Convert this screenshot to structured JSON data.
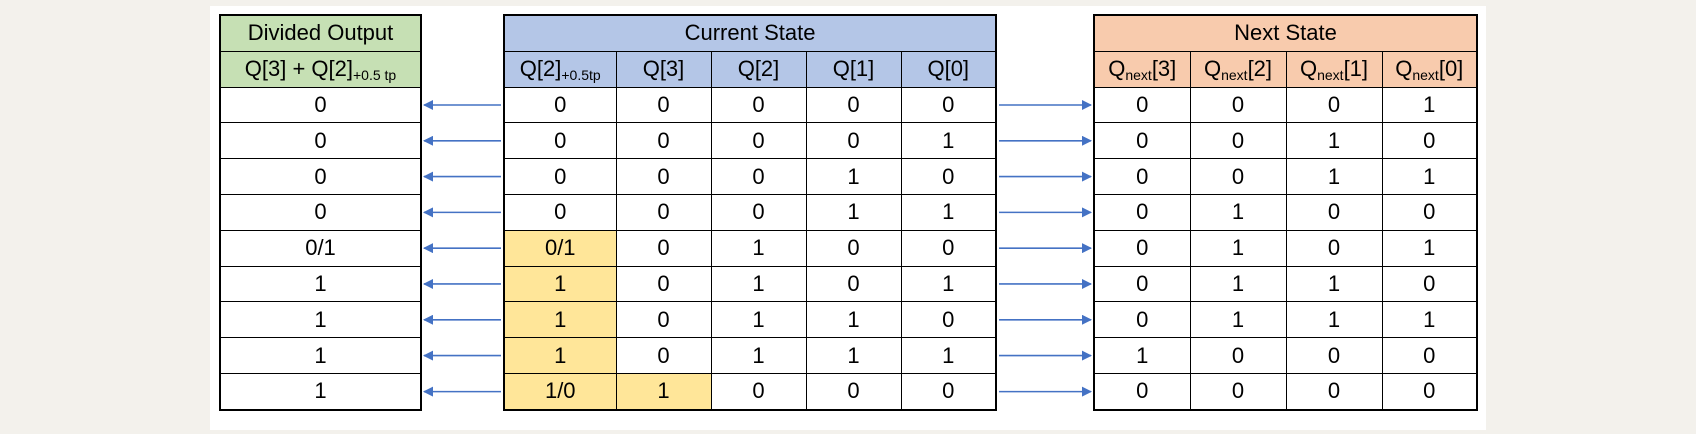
{
  "tables": {
    "divided_output": {
      "title": "Divided Output",
      "column_parts": [
        "Q[3] + Q[2]",
        "+0.5 tp"
      ],
      "values": [
        "0",
        "0",
        "0",
        "0",
        "0/1",
        "1",
        "1",
        "1",
        "1"
      ]
    },
    "current_state": {
      "title": "Current State",
      "columns": [
        {
          "base": "Q[2]",
          "sub": "+0.5tp"
        },
        {
          "base": "Q[3]",
          "sub": ""
        },
        {
          "base": "Q[2]",
          "sub": ""
        },
        {
          "base": "Q[1]",
          "sub": ""
        },
        {
          "base": "Q[0]",
          "sub": ""
        }
      ],
      "rows": [
        [
          "0",
          "0",
          "0",
          "0",
          "0"
        ],
        [
          "0",
          "0",
          "0",
          "0",
          "1"
        ],
        [
          "0",
          "0",
          "0",
          "1",
          "0"
        ],
        [
          "0",
          "0",
          "0",
          "1",
          "1"
        ],
        [
          "0/1",
          "0",
          "1",
          "0",
          "0"
        ],
        [
          "1",
          "0",
          "1",
          "0",
          "1"
        ],
        [
          "1",
          "0",
          "1",
          "1",
          "0"
        ],
        [
          "1",
          "0",
          "1",
          "1",
          "1"
        ],
        [
          "1/0",
          "1",
          "0",
          "0",
          "0"
        ]
      ],
      "highlighted_cells": [
        [
          4,
          0
        ],
        [
          5,
          0
        ],
        [
          6,
          0
        ],
        [
          7,
          0
        ],
        [
          8,
          0
        ],
        [
          8,
          1
        ]
      ]
    },
    "next_state": {
      "title": "Next State",
      "columns": [
        {
          "pre": "Q",
          "sub": "next",
          "post": "[3]"
        },
        {
          "pre": "Q",
          "sub": "next",
          "post": "[2]"
        },
        {
          "pre": "Q",
          "sub": "next",
          "post": "[1]"
        },
        {
          "pre": "Q",
          "sub": "next",
          "post": "[0]"
        }
      ],
      "rows": [
        [
          "0",
          "0",
          "0",
          "1"
        ],
        [
          "0",
          "0",
          "1",
          "0"
        ],
        [
          "0",
          "0",
          "1",
          "1"
        ],
        [
          "0",
          "1",
          "0",
          "0"
        ],
        [
          "0",
          "1",
          "0",
          "1"
        ],
        [
          "0",
          "1",
          "1",
          "0"
        ],
        [
          "0",
          "1",
          "1",
          "1"
        ],
        [
          "1",
          "0",
          "0",
          "0"
        ],
        [
          "0",
          "0",
          "0",
          "0"
        ]
      ]
    }
  },
  "colors": {
    "green_header": "#c6e0b4",
    "blue_header": "#b4c6e7",
    "orange_header": "#f8cbad",
    "highlight": "#ffe699",
    "arrow": "#4472c4"
  }
}
